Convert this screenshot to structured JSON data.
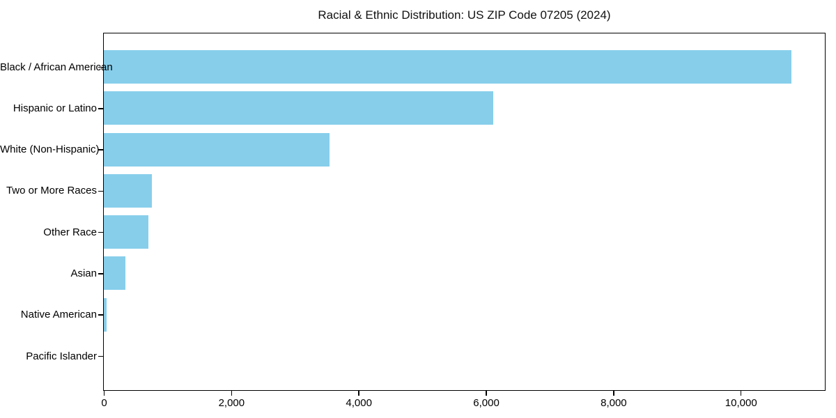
{
  "chart_data": {
    "type": "bar",
    "orientation": "horizontal",
    "title": "Racial & Ethnic Distribution: US ZIP Code 07205 (2024)",
    "categories": [
      "Black / African American",
      "Hispanic or Latino",
      "White (Non-Hispanic)",
      "Two or More Races",
      "Other Race",
      "Asian",
      "Native American",
      "Pacific Islander"
    ],
    "values": [
      10800,
      6110,
      3540,
      760,
      700,
      340,
      40,
      0
    ],
    "xlabel": "",
    "ylabel": "",
    "xlim": [
      0,
      11310
    ],
    "x_tick_values": [
      0,
      2000,
      4000,
      6000,
      8000,
      10000
    ],
    "x_tick_labels": [
      "0",
      "2,000",
      "4,000",
      "6,000",
      "8,000",
      "10,000"
    ],
    "bar_color": "#87CEEB",
    "grid": false,
    "legend": "none",
    "background_color": "#ffffff",
    "spine_color": "#000000"
  }
}
